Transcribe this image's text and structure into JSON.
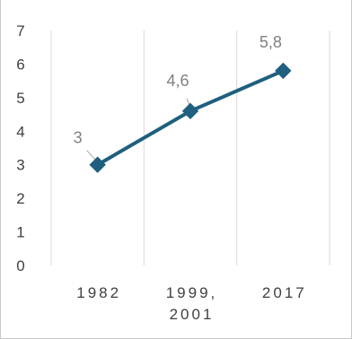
{
  "chart_data": {
    "type": "line",
    "title": "",
    "xlabel": "",
    "ylabel": "",
    "categories": [
      [
        "1982"
      ],
      [
        "1999,",
        "2001"
      ],
      [
        "2017"
      ]
    ],
    "series": [
      {
        "values": [
          3,
          4.6,
          5.8
        ],
        "data_labels": [
          "3",
          "4,6",
          "5,8"
        ]
      }
    ],
    "ylim": [
      0,
      7
    ],
    "yticks": [
      "0",
      "1",
      "2",
      "3",
      "4",
      "5",
      "6",
      "7"
    ],
    "grid": "vertical",
    "legend": "none",
    "colors": {
      "line": "#1f5f7f",
      "grid": "#d9d9d9",
      "label": "#808080",
      "tick": "#404040"
    }
  }
}
